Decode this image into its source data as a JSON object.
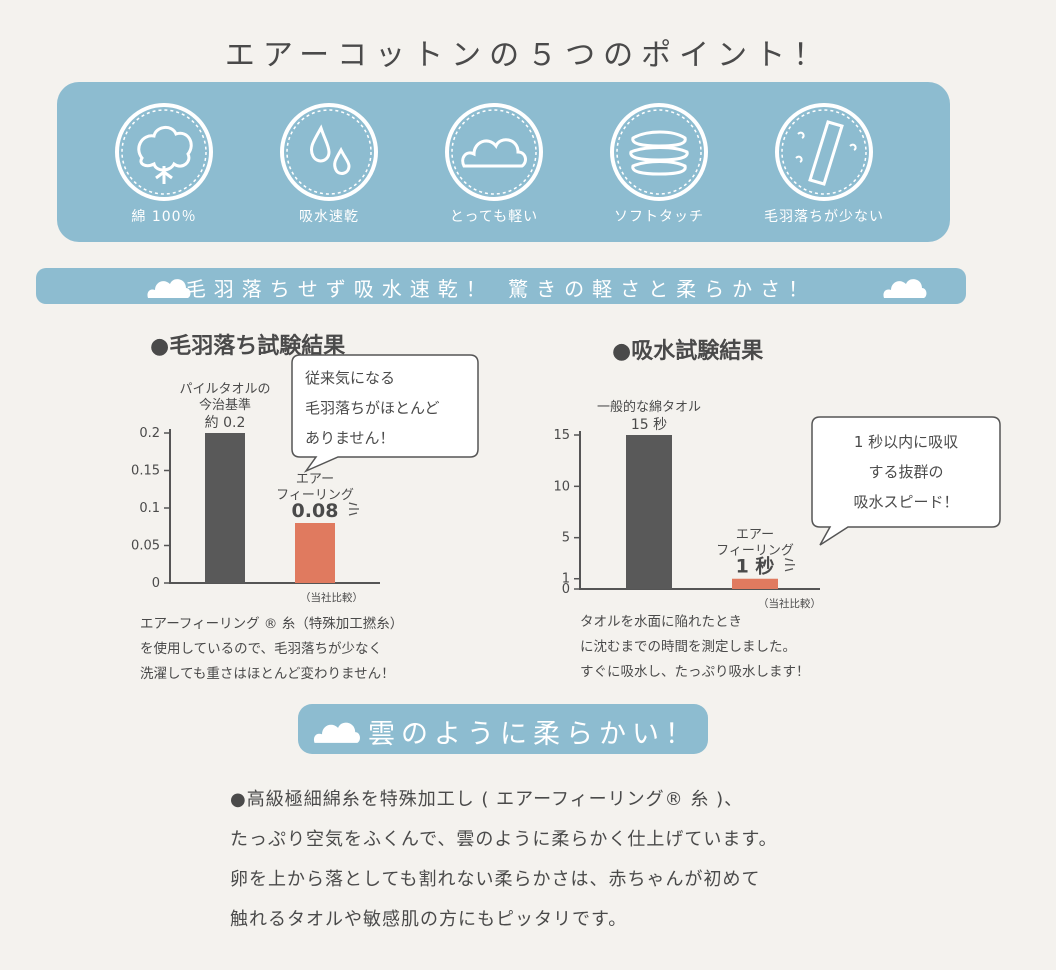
{
  "title": "エアーコットンの５つのポイント！",
  "points": [
    {
      "label": "綿 100％",
      "icon": "cotton-plant-icon"
    },
    {
      "label": "吸水速乾",
      "icon": "water-drops-icon"
    },
    {
      "label": "とっても軽い",
      "icon": "cloud-icon"
    },
    {
      "label": "ソフトタッチ",
      "icon": "folded-towels-icon"
    },
    {
      "label": "毛羽落ちが少ない",
      "icon": "towel-icon"
    }
  ],
  "banner": "毛羽落ちせず吸水速乾！ 驚きの軽さと柔らかさ！",
  "colors": {
    "accent_blue": "#8dbcd0",
    "bar_standard": "#595959",
    "bar_air": "#e07a5f",
    "background": "#f4f2ee"
  },
  "chart_data": [
    {
      "type": "bar",
      "title": "●毛羽落ち試験結果",
      "categories": [
        "パイルタオルの今治基準",
        "エアーフィーリング"
      ],
      "values": [
        0.2,
        0.08
      ],
      "value_labels": [
        "約 0.2",
        "0.08"
      ],
      "category_label_lines": [
        [
          "パイルタオルの",
          "今治基準"
        ],
        [
          "エアー",
          "フィーリング"
        ]
      ],
      "yticks": [
        "0.2",
        "0.15",
        "0.1",
        "0.05",
        "0"
      ],
      "ytick_values": [
        0.2,
        0.15,
        0.1,
        0.05,
        0
      ],
      "ylim": [
        0,
        0.2
      ],
      "footnote": "（当社比較）",
      "bubble": [
        "従来気になる",
        "毛羽落ちがほとんど",
        "ありません！"
      ],
      "note": [
        "エアーフィーリング ® 糸（特殊加工撚糸）",
        "を使用しているので、毛羽落ちが少なく",
        "洗濯しても重さはほとんど変わりません！"
      ]
    },
    {
      "type": "bar",
      "title": "●吸水試験結果",
      "categories": [
        "一般的な綿タオル",
        "エアーフィーリング"
      ],
      "values": [
        15,
        1
      ],
      "value_labels": [
        "15 秒",
        "1 秒"
      ],
      "category_label_lines": [
        [
          "一般的な綿タオル"
        ],
        [
          "エアー",
          "フィーリング"
        ]
      ],
      "yticks": [
        "15",
        "10",
        "5",
        "1",
        "0"
      ],
      "ytick_values": [
        15,
        10,
        5,
        1,
        0
      ],
      "ylim": [
        0,
        15
      ],
      "footnote": "（当社比較）",
      "bubble": [
        "1 秒以内に吸収",
        "する抜群の",
        "吸水スピード！"
      ],
      "note": [
        "タオルを水面に陥れたとき",
        "に沈むまでの時間を測定しました。",
        "すぐに吸水し、たっぷり吸水します！"
      ]
    }
  ],
  "soft_heading": "雲のように柔らかい！",
  "body_lines": [
    "●高級極細綿糸を特殊加工し ( エアーフィーリング® 糸 )、",
    "たっぷり空気をふくんで、雲のように柔らかく仕上げています。",
    "卵を上から落としても割れない柔らかさは、赤ちゃんが初めて",
    "触れるタオルや敏感肌の方にもピッタリです。"
  ]
}
